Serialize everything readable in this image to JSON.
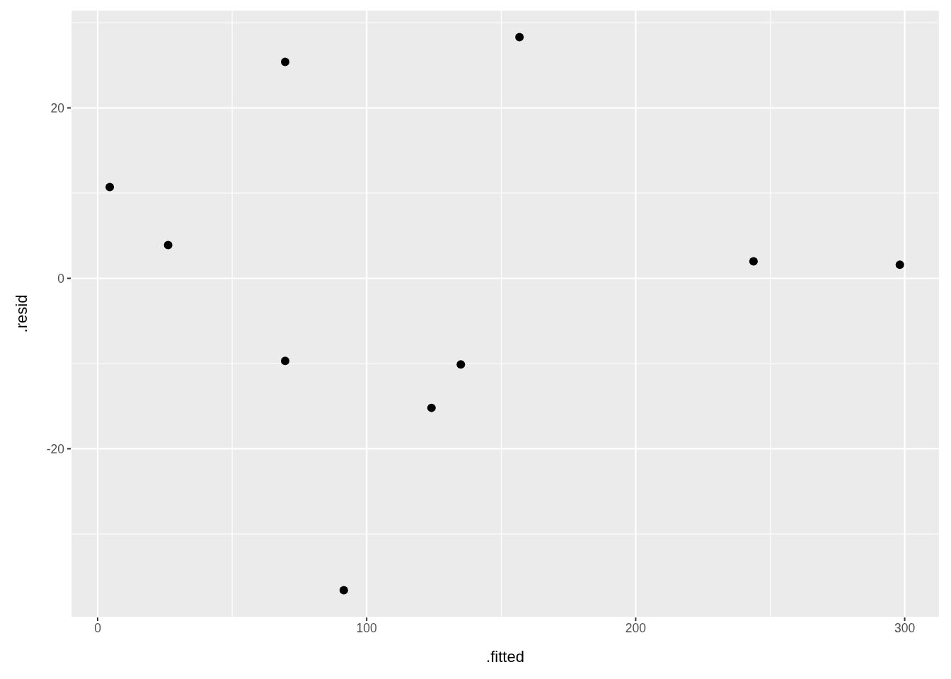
{
  "chart_data": {
    "type": "scatter",
    "xlabel": ".fitted",
    "ylabel": ".resid",
    "x": [
      4.5,
      26.2,
      69.7,
      69.7,
      91.5,
      124.1,
      135.0,
      156.8,
      243.8,
      298.2
    ],
    "values": [
      10.7,
      3.9,
      25.4,
      -9.7,
      -36.6,
      -15.2,
      -10.1,
      28.3,
      2.0,
      1.6
    ],
    "color": "#000000",
    "marker": "circle",
    "xlim": [
      -10,
      313
    ],
    "ylim": [
      -39.8,
      31.5
    ],
    "xticks": [
      0,
      100,
      200,
      300
    ],
    "yticks": [
      -20,
      0,
      20
    ],
    "grid": true
  }
}
